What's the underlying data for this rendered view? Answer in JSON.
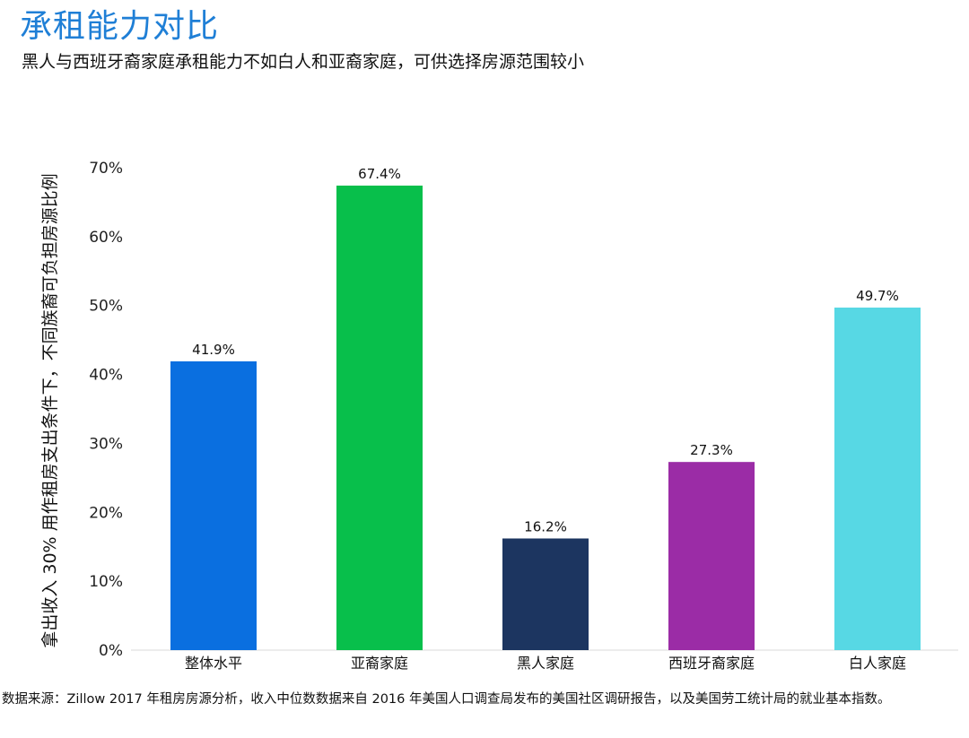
{
  "header": {
    "title": "承租能力对比",
    "subtitle": "黑人与西班牙裔家庭承租能力不如白人和亚裔家庭，可供选择房源范围较小"
  },
  "footer": {
    "source": "数据来源：Zillow 2017 年租房房源分析，收入中位数数据来自 2016 年美国人口调查局发布的美国社区调研报告，以及美国劳工统计局的就业基本指数。",
    "watermark": "Zillow"
  },
  "chart_data": {
    "type": "bar",
    "title": "",
    "xlabel": "",
    "ylabel": "拿出收入 30% 用作租房支出条件下，不同族裔可负担房源比例",
    "categories": [
      "整体水平",
      "亚裔家庭",
      "黑人家庭",
      "西班牙裔家庭",
      "白人家庭"
    ],
    "values": [
      41.9,
      67.4,
      16.2,
      27.3,
      49.7
    ],
    "value_labels": [
      "41.9%",
      "67.4%",
      "16.2%",
      "27.3%",
      "49.7%"
    ],
    "colors": [
      "#0a6fe0",
      "#08bf4b",
      "#1c3560",
      "#9b2ca6",
      "#57d8e4"
    ],
    "ylim": [
      0,
      70
    ],
    "yticks": [
      0,
      10,
      20,
      30,
      40,
      50,
      60,
      70
    ],
    "ytick_labels": [
      "0%",
      "10%",
      "20%",
      "30%",
      "40%",
      "50%",
      "60%",
      "70%"
    ],
    "grid": false,
    "legend": "none"
  }
}
